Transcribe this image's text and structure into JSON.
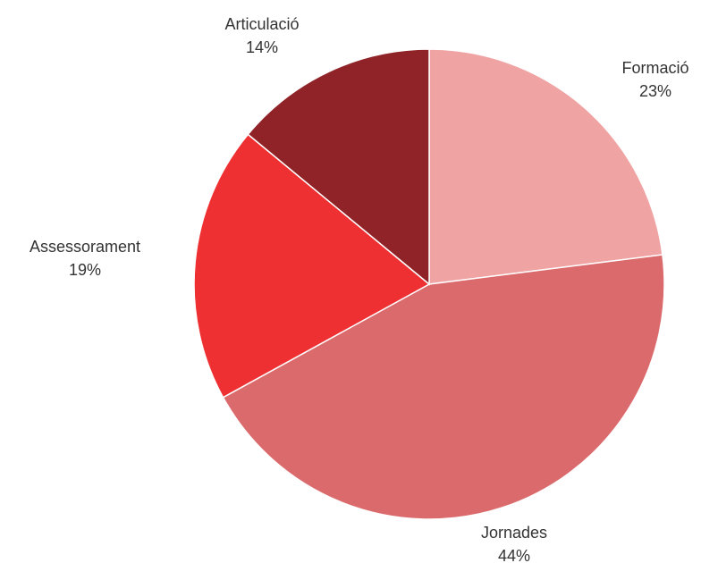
{
  "chart_data": {
    "type": "pie",
    "start_angle_deg": 0,
    "direction": "clockwise",
    "slices": [
      {
        "label": "Formació",
        "value": 23,
        "display": "23%",
        "color": "#f0a3a3"
      },
      {
        "label": "Jornades",
        "value": 44,
        "display": "44%",
        "color": "#db6a6c"
      },
      {
        "label": "Assessorament",
        "value": 19,
        "display": "19%",
        "color": "#ee3033"
      },
      {
        "label": "Articulació",
        "value": 14,
        "display": "14%",
        "color": "#8f2327"
      }
    ]
  }
}
